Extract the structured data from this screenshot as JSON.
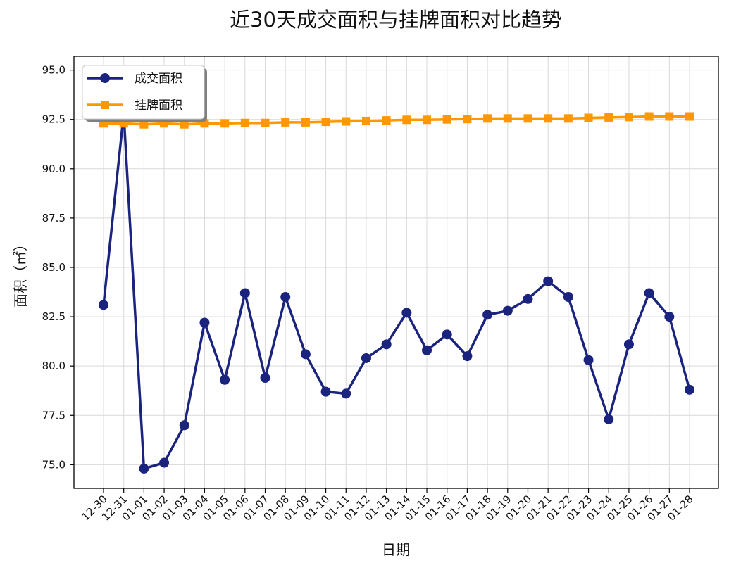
{
  "chart_data": {
    "type": "line",
    "title": "近30天成交面积与挂牌面积对比趋势",
    "xlabel": "日期",
    "ylabel": "面积（㎡）",
    "categories": [
      "12-30",
      "12-31",
      "01-01",
      "01-02",
      "01-03",
      "01-04",
      "01-05",
      "01-06",
      "01-07",
      "01-08",
      "01-09",
      "01-10",
      "01-11",
      "01-12",
      "01-13",
      "01-14",
      "01-15",
      "01-16",
      "01-17",
      "01-18",
      "01-19",
      "01-20",
      "01-21",
      "01-22",
      "01-23",
      "01-24",
      "01-25",
      "01-26",
      "01-27",
      "01-28"
    ],
    "ylim": [
      73.8,
      95.7
    ],
    "yticks": [
      "75.0",
      "77.5",
      "80.0",
      "82.5",
      "85.0",
      "87.5",
      "90.0",
      "92.5",
      "95.0"
    ],
    "grid": true,
    "legend_position": "top-left",
    "series": [
      {
        "name": "成交面积",
        "color": "#1a237e",
        "marker": "circle",
        "values": [
          83.1,
          92.8,
          74.8,
          75.1,
          77.0,
          82.2,
          79.3,
          83.7,
          79.4,
          83.5,
          80.6,
          78.7,
          78.6,
          80.4,
          81.1,
          82.7,
          80.8,
          81.6,
          80.5,
          82.6,
          82.8,
          83.4,
          84.3,
          83.5,
          80.3,
          77.3,
          81.1,
          83.7,
          82.5,
          78.8
        ]
      },
      {
        "name": "挂牌面积",
        "color": "#ff9800",
        "marker": "square",
        "values": [
          92.3,
          92.3,
          92.25,
          92.3,
          92.25,
          92.3,
          92.3,
          92.32,
          92.32,
          92.35,
          92.35,
          92.38,
          92.4,
          92.42,
          92.45,
          92.48,
          92.48,
          92.5,
          92.52,
          92.55,
          92.55,
          92.55,
          92.55,
          92.55,
          92.58,
          92.6,
          92.62,
          92.65,
          92.65,
          92.65
        ]
      }
    ]
  }
}
